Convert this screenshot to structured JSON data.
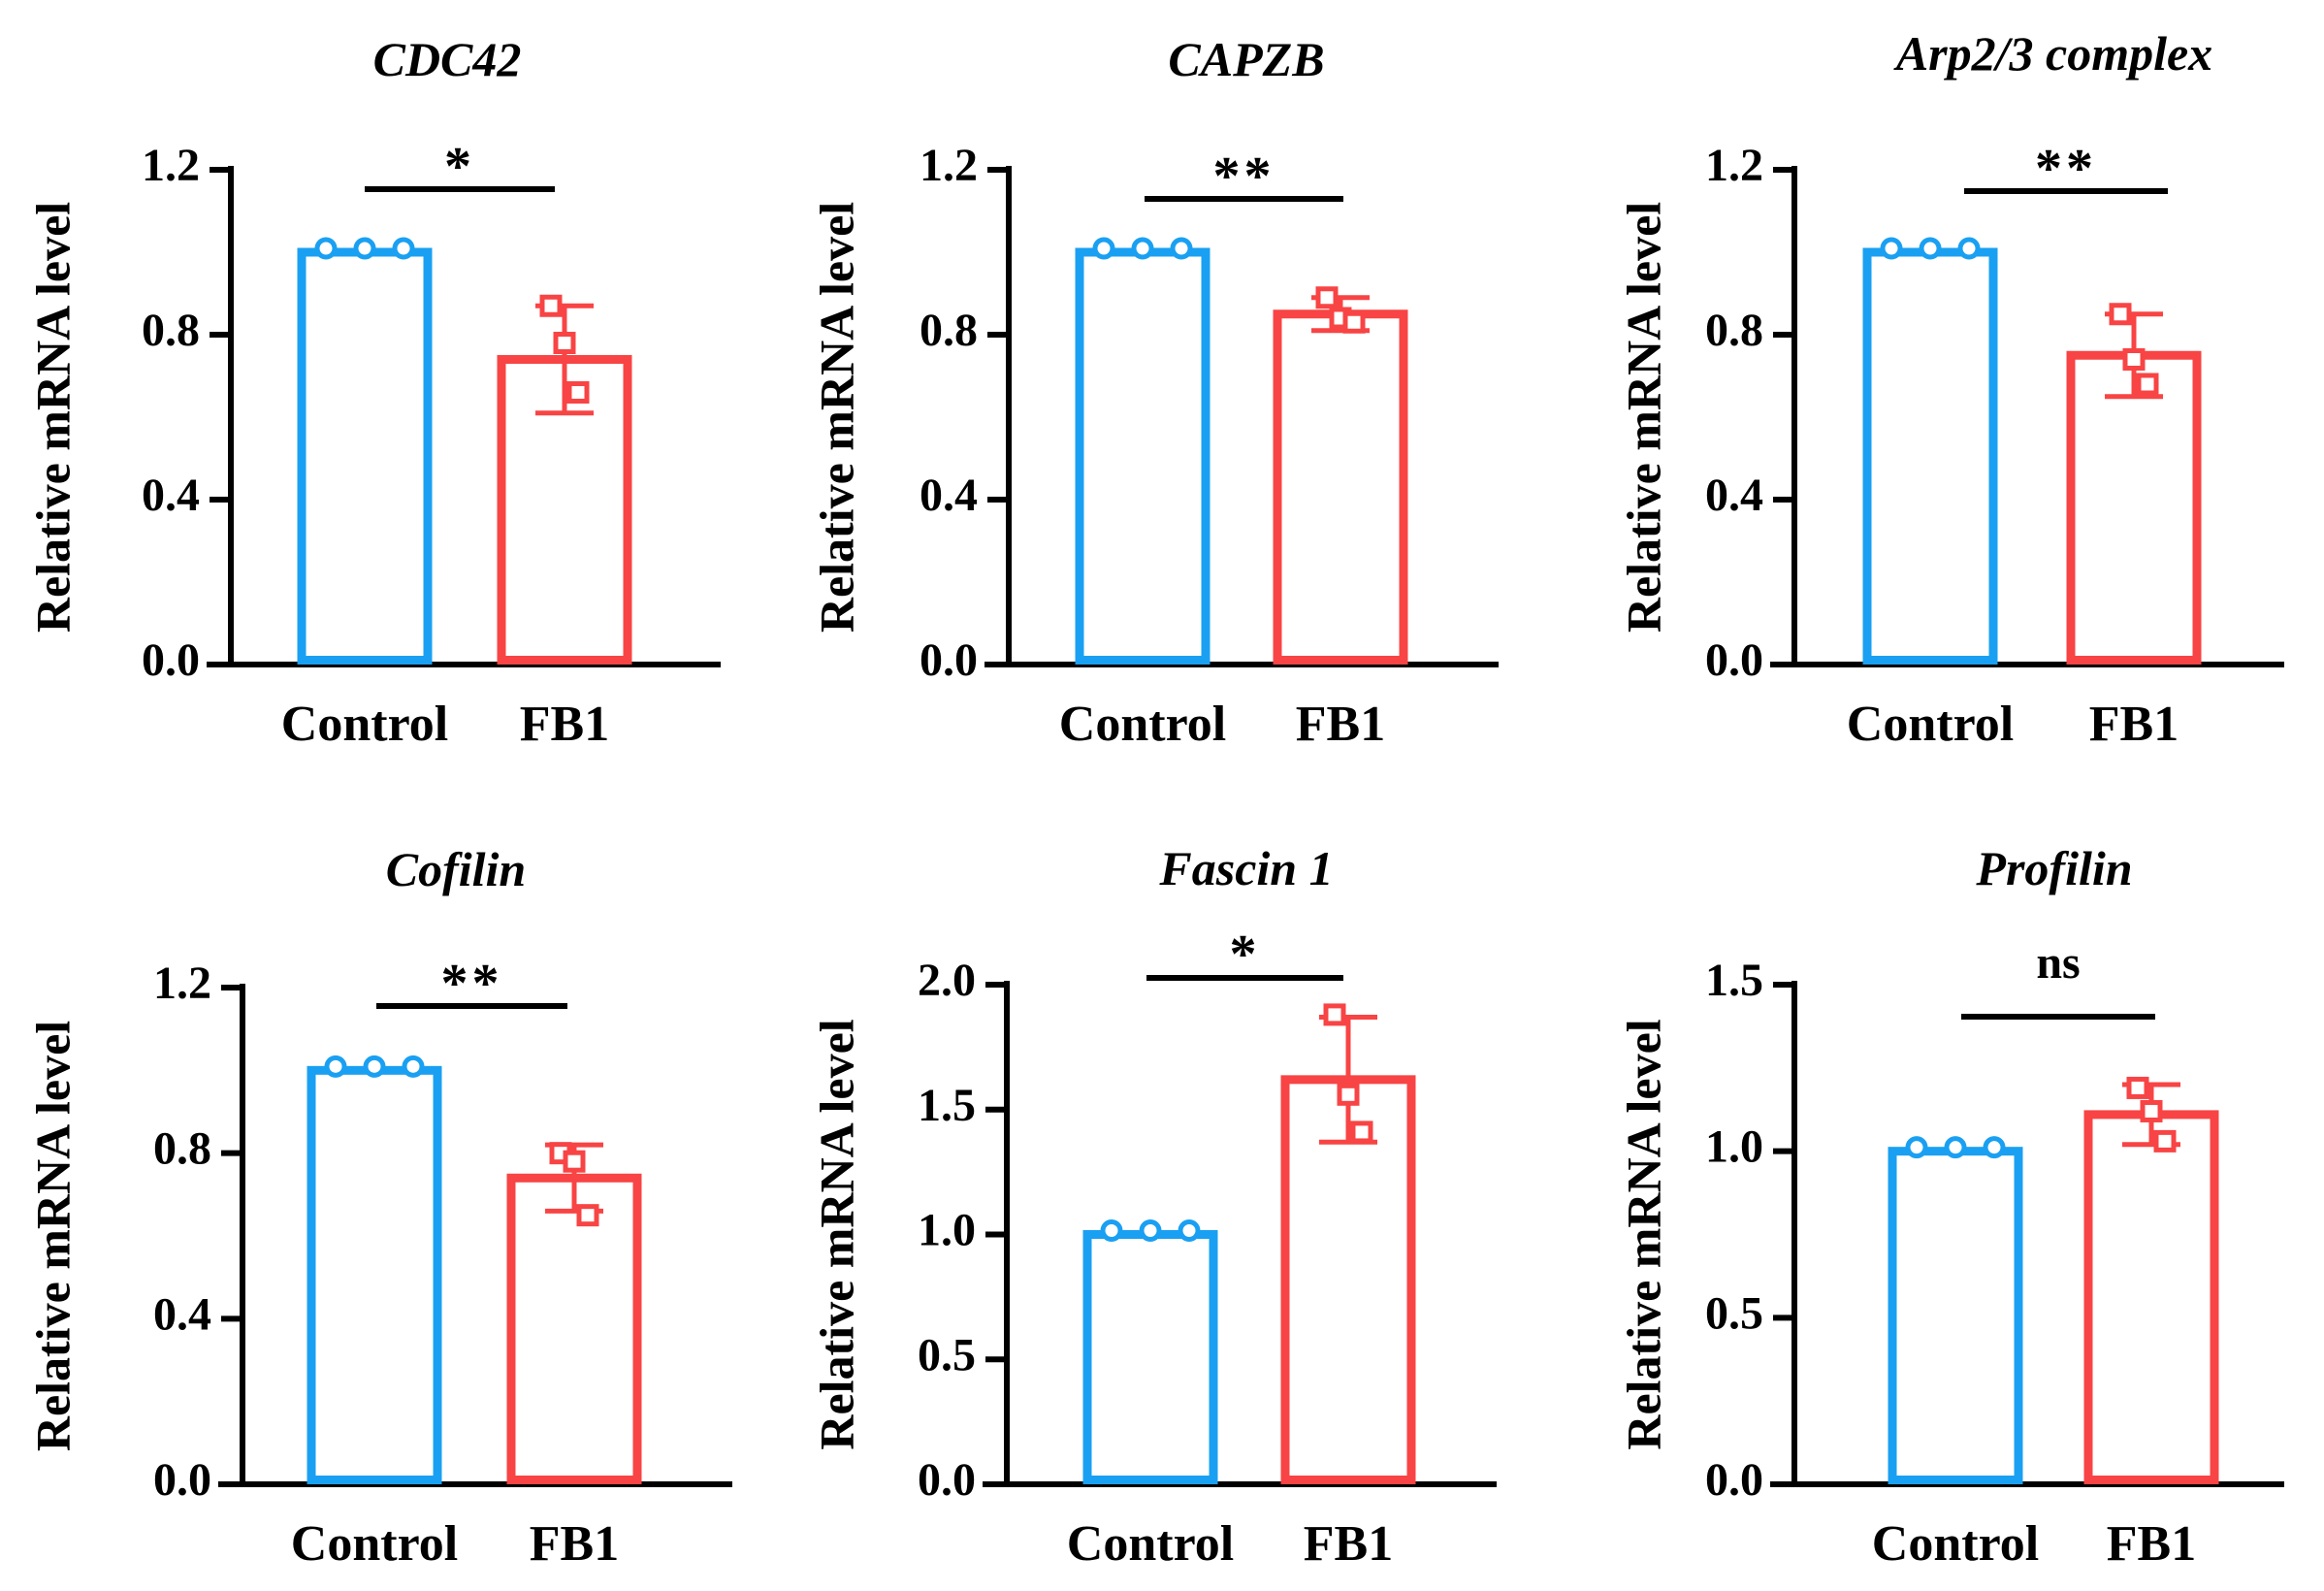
{
  "colors": {
    "control": "#1aa0f2",
    "treatment": "#f84444",
    "axis": "#000000"
  },
  "chart_data": [
    {
      "type": "bar",
      "title": "CDC42",
      "ylabel": "Relative mRNA level",
      "xlabel": "",
      "categories": [
        "Control",
        "FB1"
      ],
      "values": [
        1.0,
        0.74
      ],
      "errors": [
        0.0,
        0.13
      ],
      "points": [
        [
          1.0,
          1.0,
          1.0
        ],
        [
          0.87,
          0.78,
          0.66
        ]
      ],
      "ylim": [
        0,
        1.2
      ],
      "yticks": [
        0.0,
        0.4,
        0.8,
        1.2
      ],
      "tick_labels": [
        "0.0",
        "0.4",
        "0.8",
        "1.2"
      ],
      "significance": "*",
      "grid": false
    },
    {
      "type": "bar",
      "title": "CAPZB",
      "ylabel": "Relative mRNA level",
      "xlabel": "",
      "categories": [
        "Control",
        "FB1"
      ],
      "values": [
        1.0,
        0.85
      ],
      "errors": [
        0.0,
        0.04
      ],
      "points": [
        [
          1.0,
          1.0,
          1.0
        ],
        [
          0.89,
          0.84,
          0.83
        ]
      ],
      "ylim": [
        0,
        1.2
      ],
      "yticks": [
        0.0,
        0.4,
        0.8,
        1.2
      ],
      "tick_labels": [
        "0.0",
        "0.4",
        "0.8",
        "1.2"
      ],
      "significance": "**",
      "grid": false
    },
    {
      "type": "bar",
      "title": "Arp2/3 complex",
      "ylabel": "Relative mRNA level",
      "xlabel": "",
      "categories": [
        "Control",
        "FB1"
      ],
      "values": [
        1.0,
        0.75
      ],
      "errors": [
        0.0,
        0.1
      ],
      "points": [
        [
          1.0,
          1.0,
          1.0
        ],
        [
          0.85,
          0.74,
          0.68
        ]
      ],
      "ylim": [
        0,
        1.2
      ],
      "yticks": [
        0.0,
        0.4,
        0.8,
        1.2
      ],
      "tick_labels": [
        "0.0",
        "0.4",
        "0.8",
        "1.2"
      ],
      "significance": "**",
      "grid": false
    },
    {
      "type": "bar",
      "title": "Cofilin",
      "ylabel": "Relative mRNA level",
      "xlabel": "",
      "categories": [
        "Control",
        "FB1"
      ],
      "values": [
        1.0,
        0.74
      ],
      "errors": [
        0.0,
        0.08
      ],
      "points": [
        [
          1.0,
          1.0,
          1.0
        ],
        [
          0.8,
          0.78,
          0.65
        ]
      ],
      "ylim": [
        0,
        1.2
      ],
      "yticks": [
        0.0,
        0.4,
        0.8,
        1.2
      ],
      "tick_labels": [
        "0.0",
        "0.4",
        "0.8",
        "1.2"
      ],
      "significance": "**",
      "grid": false
    },
    {
      "type": "bar",
      "title": "Fascin 1",
      "ylabel": "Relative mRNA level",
      "xlabel": "",
      "categories": [
        "Control",
        "FB1"
      ],
      "values": [
        1.0,
        1.62
      ],
      "errors": [
        0.0,
        0.25
      ],
      "points": [
        [
          1.0,
          1.0,
          1.0
        ],
        [
          1.88,
          1.56,
          1.41
        ]
      ],
      "ylim": [
        0,
        2.0
      ],
      "yticks": [
        0.0,
        0.5,
        1.0,
        1.5,
        2.0
      ],
      "tick_labels": [
        "0.0",
        "0.5",
        "1.0",
        "1.5",
        "2.0"
      ],
      "significance": "*",
      "grid": false
    },
    {
      "type": "bar",
      "title": "Profilin",
      "ylabel": "Relative mRNA level",
      "xlabel": "",
      "categories": [
        "Control",
        "FB1"
      ],
      "values": [
        1.0,
        1.11
      ],
      "errors": [
        0.0,
        0.09
      ],
      "points": [
        [
          1.0,
          1.0,
          1.0
        ],
        [
          1.19,
          1.12,
          1.03
        ]
      ],
      "ylim": [
        0,
        1.5
      ],
      "yticks": [
        0.0,
        0.5,
        1.0,
        1.5
      ],
      "tick_labels": [
        "0.0",
        "0.5",
        "1.0",
        "1.5"
      ],
      "significance": "ns",
      "grid": false
    }
  ]
}
